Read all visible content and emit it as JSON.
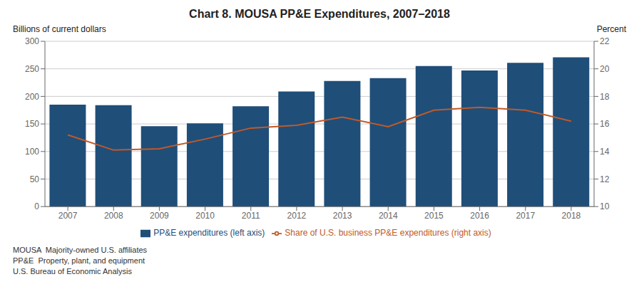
{
  "chart_data": {
    "type": "bar",
    "title": "Chart 8. MOUSA PP&E Expenditures, 2007–2018",
    "categories": [
      "2007",
      "2008",
      "2009",
      "2010",
      "2011",
      "2012",
      "2013",
      "2014",
      "2015",
      "2016",
      "2017",
      "2018"
    ],
    "series": [
      {
        "name": "PP&E expenditures (left axis)",
        "type": "bar",
        "color": "#1F4E79",
        "values": [
          185,
          184,
          146,
          151,
          182,
          209,
          228,
          233,
          255,
          247,
          261,
          271
        ]
      },
      {
        "name": "Share of U.S. business PP&E expenditures (right axis)",
        "type": "line",
        "axis": "y2",
        "color": "#C05A28",
        "values": [
          15.2,
          14.1,
          14.2,
          14.9,
          15.7,
          15.9,
          16.5,
          15.8,
          17.0,
          17.2,
          17.0,
          16.2
        ]
      }
    ],
    "y_label": "Billions of current dollars",
    "y2_label": "Percent",
    "ylim": [
      0,
      300
    ],
    "yticks": [
      0,
      50,
      100,
      150,
      200,
      250,
      300
    ],
    "y2lim": [
      10,
      22
    ],
    "y2ticks": [
      10,
      12,
      14,
      16,
      18,
      20,
      22
    ],
    "grid": true,
    "legend": "bottom",
    "annotations": [
      "MOUSA  Majority-owned U.S. affiliates",
      "PP&E  Property, plant, and equipment",
      "U.S. Bureau of Economic Analysis"
    ]
  }
}
